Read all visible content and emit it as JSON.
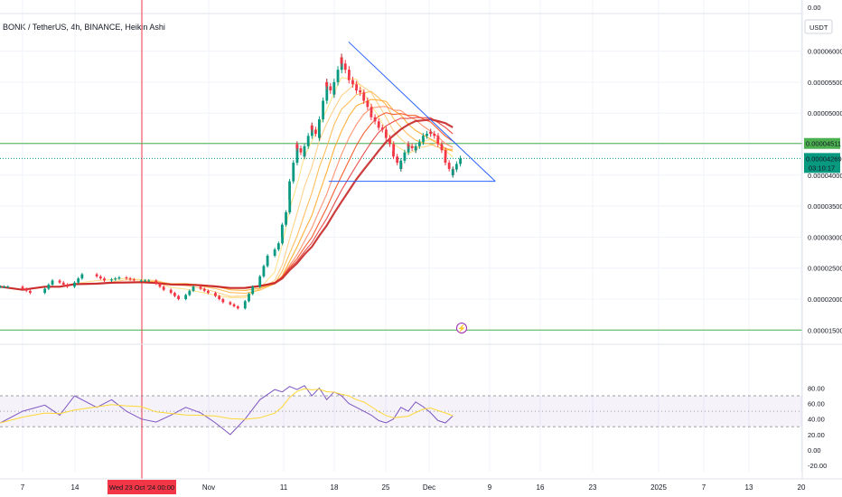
{
  "title": "BONK / TetherUS, 4h, BINANCE, Heikin Ashi",
  "currency_label": "USDT",
  "price_axis": {
    "ticks": [
      {
        "value": 0,
        "label": "0.00"
      },
      {
        "value": 6e-05,
        "label": "0.00006000"
      },
      {
        "value": 5.5e-05,
        "label": "0.00005500"
      },
      {
        "value": 5e-05,
        "label": "0.00005000"
      },
      {
        "value": 4.5e-05,
        "label": ""
      },
      {
        "value": 4e-05,
        "label": "0.00004000"
      },
      {
        "value": 3.5e-05,
        "label": "0.00003500"
      },
      {
        "value": 3e-05,
        "label": "0.00003000"
      },
      {
        "value": 2.5e-05,
        "label": "0.00002500"
      },
      {
        "value": 2e-05,
        "label": "0.00002000"
      },
      {
        "value": 1.5e-05,
        "label": "0.00001500"
      }
    ]
  },
  "price_badges": {
    "resistance": {
      "label": "0.00004511",
      "color": "#4caf50"
    },
    "last": {
      "label": "0.00004269",
      "countdown": "03:10:17",
      "color": "#089981"
    }
  },
  "rsi_axis": {
    "ticks": [
      {
        "value": 80,
        "label": "80.00"
      },
      {
        "value": 60,
        "label": "60.00"
      },
      {
        "value": 40,
        "label": "40.00"
      },
      {
        "value": 20,
        "label": "20.00"
      },
      {
        "value": 0,
        "label": "0.00"
      },
      {
        "value": -20,
        "label": "-20.00"
      }
    ],
    "band_upper": 70,
    "band_middle": 50,
    "band_lower": 30
  },
  "time_axis": {
    "ticks": [
      "7",
      "14",
      "Nov",
      "11",
      "18",
      "25",
      "Dec",
      "9",
      "16",
      "23",
      "2025",
      "7",
      "13",
      "20"
    ],
    "crosshair_label": "Wed 23 Oct '24   00:00"
  },
  "colors": {
    "bull": "#089981",
    "bear": "#f23645",
    "trendline": "#2962ff",
    "horizontal_line": "#4caf50",
    "rsi_line": "#7e57c2",
    "rsi_ma": "#fdd835",
    "crosshair": "#f23645"
  },
  "chart_data": {
    "type": "candlestick",
    "symbol": "BONK / TetherUS",
    "timeframe": "4h",
    "exchange": "BINANCE",
    "chart_style": "Heikin Ashi",
    "price_range": [
      1.4e-05,
      6.3e-05
    ],
    "horizontal_levels": [
      4.511e-05,
      1.5e-05
    ],
    "last_price": 4.269e-05,
    "triangle_pattern": {
      "apex_top": {
        "date": "2024-11-18",
        "price": 6.15e-05
      },
      "base_left": {
        "date": "2024-11-18",
        "price": 3.9e-05
      },
      "base_right": {
        "date": "2024-12-09",
        "price": 3.9e-05
      }
    },
    "price_series": {
      "dates": [
        "2024-10-04",
        "2024-10-07",
        "2024-10-10",
        "2024-10-12",
        "2024-10-14",
        "2024-10-17",
        "2024-10-19",
        "2024-10-21",
        "2024-10-23",
        "2024-10-25",
        "2024-10-27",
        "2024-10-29",
        "2024-10-31",
        "2024-11-02",
        "2024-11-04",
        "2024-11-06",
        "2024-11-08",
        "2024-11-10",
        "2024-11-11",
        "2024-11-12",
        "2024-11-13",
        "2024-11-14",
        "2024-11-15",
        "2024-11-16",
        "2024-11-17",
        "2024-11-18",
        "2024-11-19",
        "2024-11-20",
        "2024-11-21",
        "2024-11-22",
        "2024-11-23",
        "2024-11-24",
        "2024-11-25",
        "2024-11-26",
        "2024-11-27",
        "2024-11-28",
        "2024-11-29",
        "2024-11-30",
        "2024-12-01",
        "2024-12-02",
        "2024-12-03",
        "2024-12-04"
      ],
      "close": [
        2.2e-05,
        2.1e-05,
        2.3e-05,
        2.2e-05,
        2.4e-05,
        2.3e-05,
        2.35e-05,
        2.3e-05,
        2.3e-05,
        2.15e-05,
        2e-05,
        2.2e-05,
        2.1e-05,
        1.95e-05,
        1.85e-05,
        2.2e-05,
        2.7e-05,
        3e-05,
        3.6e-05,
        4.5e-05,
        4.3e-05,
        4.8e-05,
        4.6e-05,
        5.5e-05,
        5.3e-05,
        5.9e-05,
        5.6e-05,
        5.4e-05,
        5.3e-05,
        5e-05,
        4.8e-05,
        4.7e-05,
        4.4e-05,
        4.1e-05,
        4.5e-05,
        4.4e-05,
        4.6e-05,
        4.7e-05,
        4.6e-05,
        4.3e-05,
        4e-05,
        4.27e-05
      ]
    },
    "rsi_series": {
      "dates": [
        "2024-10-04",
        "2024-10-07",
        "2024-10-10",
        "2024-10-12",
        "2024-10-14",
        "2024-10-17",
        "2024-10-19",
        "2024-10-21",
        "2024-10-23",
        "2024-10-25",
        "2024-10-27",
        "2024-10-29",
        "2024-10-31",
        "2024-11-02",
        "2024-11-04",
        "2024-11-06",
        "2024-11-08",
        "2024-11-10",
        "2024-11-11",
        "2024-11-12",
        "2024-11-13",
        "2024-11-14",
        "2024-11-15",
        "2024-11-16",
        "2024-11-17",
        "2024-11-18",
        "2024-11-19",
        "2024-11-20",
        "2024-11-21",
        "2024-11-22",
        "2024-11-23",
        "2024-11-24",
        "2024-11-25",
        "2024-11-26",
        "2024-11-27",
        "2024-11-28",
        "2024-11-29",
        "2024-11-30",
        "2024-12-01",
        "2024-12-02",
        "2024-12-03",
        "2024-12-04"
      ],
      "values": [
        35,
        50,
        58,
        45,
        70,
        55,
        65,
        50,
        40,
        36,
        45,
        55,
        48,
        35,
        20,
        40,
        65,
        78,
        75,
        82,
        78,
        83,
        70,
        80,
        65,
        75,
        70,
        60,
        55,
        50,
        45,
        38,
        35,
        40,
        55,
        50,
        62,
        56,
        48,
        38,
        35,
        44
      ]
    }
  }
}
